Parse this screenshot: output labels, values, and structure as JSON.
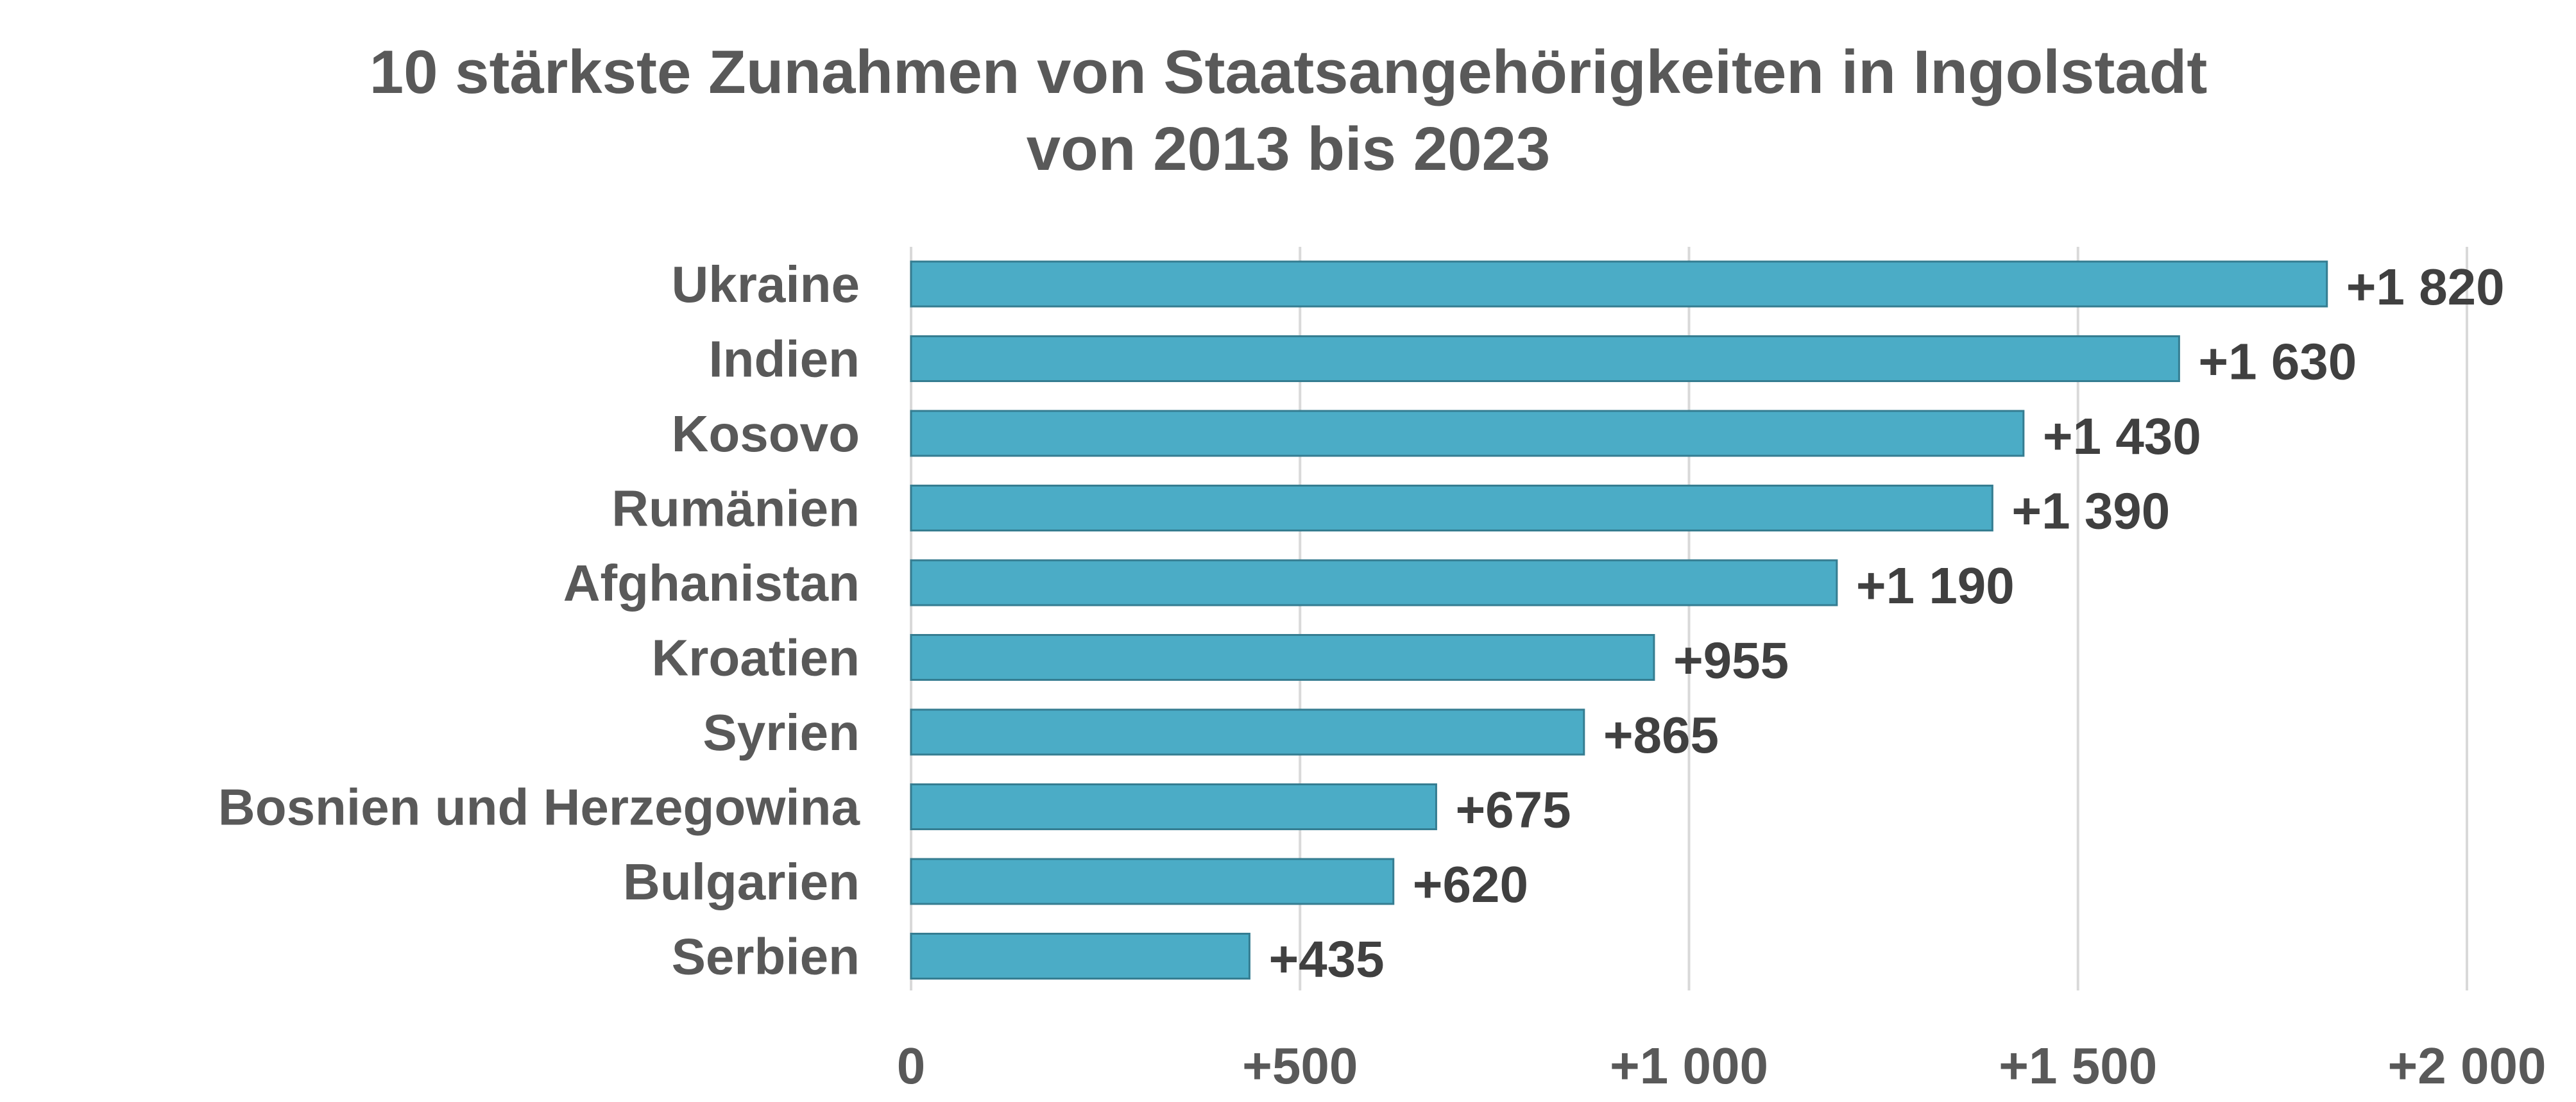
{
  "chart_data": {
    "type": "bar",
    "orientation": "horizontal",
    "title_lines": [
      "10 stärkste Zunahmen von Staatsangehörigkeiten in Ingolstadt",
      "von 2013 bis 2023"
    ],
    "categories": [
      "Ukraine",
      "Indien",
      "Kosovo",
      "Rumänien",
      "Afghanistan",
      "Kroatien",
      "Syrien",
      "Bosnien und Herzegowina",
      "Bulgarien",
      "Serbien"
    ],
    "values": [
      1820,
      1630,
      1430,
      1390,
      1190,
      955,
      865,
      675,
      620,
      435
    ],
    "data_labels": [
      "+1 820",
      "+1 630",
      "+1 430",
      "+1 390",
      "+1 190",
      "+955",
      "+865",
      "+675",
      "+620",
      "+435"
    ],
    "xlim": [
      0,
      2000
    ],
    "x_ticks": [
      0,
      500,
      1000,
      1500,
      2000
    ],
    "x_tick_labels": [
      "0",
      "+500",
      "+1 000",
      "+1 500",
      "+2 000"
    ],
    "grid": true,
    "legend": "none",
    "colors": {
      "bar_fill": "#4bacc6",
      "bar_stroke": "#357d91",
      "text": "#595959",
      "data_label": "#404040",
      "grid": "#d9d9d9"
    }
  }
}
